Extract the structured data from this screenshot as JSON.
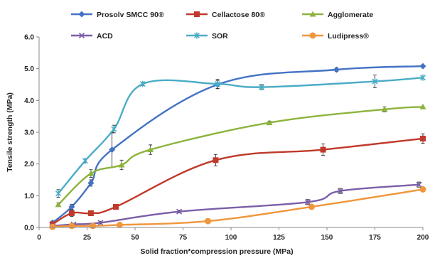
{
  "chart_data": {
    "type": "line",
    "xlabel": "Solid fraction*compression pressure (MPa)",
    "ylabel": "Tensile strength (MPa)",
    "xlim": [
      0,
      200
    ],
    "ylim": [
      0,
      6
    ],
    "x_ticks": [
      "0",
      "25",
      "50",
      "75",
      "100",
      "125",
      "150",
      "175",
      "200"
    ],
    "y_ticks": [
      "0.0",
      "1.0",
      "2.0",
      "3.0",
      "4.0",
      "5.0",
      "6.0"
    ],
    "grid": false,
    "legend_position": "top",
    "series": [
      {
        "name": "Prosolv SMCC 90®",
        "color": "#4472C4",
        "marker": "diamond",
        "points": [
          [
            7,
            0.15
          ],
          [
            17,
            0.65
          ],
          [
            27,
            1.4
          ],
          [
            38,
            2.45
          ],
          [
            93,
            4.5
          ],
          [
            155,
            4.97
          ],
          [
            200,
            5.08
          ]
        ],
        "errors": [
          0.05,
          0.08,
          0.1,
          0.55,
          0.12,
          0.06,
          0.0
        ]
      },
      {
        "name": "Cellactose 80®",
        "color": "#C0392B",
        "marker": "square",
        "points": [
          [
            7,
            0.1
          ],
          [
            17,
            0.45
          ],
          [
            27,
            0.45
          ],
          [
            40,
            0.65
          ],
          [
            92,
            2.12
          ],
          [
            148,
            2.45
          ],
          [
            200,
            2.8
          ]
        ],
        "errors": [
          0.05,
          0.1,
          0.08,
          0.08,
          0.18,
          0.18,
          0.15
        ]
      },
      {
        "name": "Agglomerate",
        "color": "#8CB33C",
        "marker": "triangle",
        "points": [
          [
            10,
            0.72
          ],
          [
            27,
            1.7
          ],
          [
            43,
            1.97
          ],
          [
            58,
            2.45
          ],
          [
            120,
            3.3
          ],
          [
            180,
            3.72
          ],
          [
            200,
            3.8
          ]
        ],
        "errors": [
          0.05,
          0.12,
          0.15,
          0.15,
          0.05,
          0.08,
          0.0
        ]
      },
      {
        "name": "ACD",
        "color": "#7B5EA7",
        "marker": "x",
        "points": [
          [
            7,
            0.05
          ],
          [
            18,
            0.1
          ],
          [
            32,
            0.15
          ],
          [
            73,
            0.5
          ],
          [
            140,
            0.8
          ],
          [
            157,
            1.15
          ],
          [
            198,
            1.35
          ]
        ],
        "errors": [
          0.03,
          0.03,
          0.04,
          0.04,
          0.08,
          0.08,
          0.08
        ]
      },
      {
        "name": "SOR",
        "color": "#4BACC6",
        "marker": "star",
        "points": [
          [
            10,
            1.07
          ],
          [
            24,
            2.1
          ],
          [
            39,
            3.1
          ],
          [
            54,
            4.52
          ],
          [
            93,
            4.52
          ],
          [
            116,
            4.42
          ],
          [
            175,
            4.6
          ],
          [
            200,
            4.72
          ]
        ],
        "errors": [
          0.12,
          0.05,
          0.12,
          0.05,
          0.15,
          0.08,
          0.2,
          0.0
        ]
      },
      {
        "name": "Ludipress®",
        "color": "#F0963C",
        "marker": "circle",
        "points": [
          [
            7,
            0.02
          ],
          [
            17,
            0.05
          ],
          [
            28,
            0.05
          ],
          [
            42,
            0.08
          ],
          [
            88,
            0.2
          ],
          [
            142,
            0.65
          ],
          [
            200,
            1.2
          ]
        ],
        "errors": [
          0.02,
          0.02,
          0.02,
          0.02,
          0.02,
          0.05,
          0.0
        ]
      }
    ]
  }
}
